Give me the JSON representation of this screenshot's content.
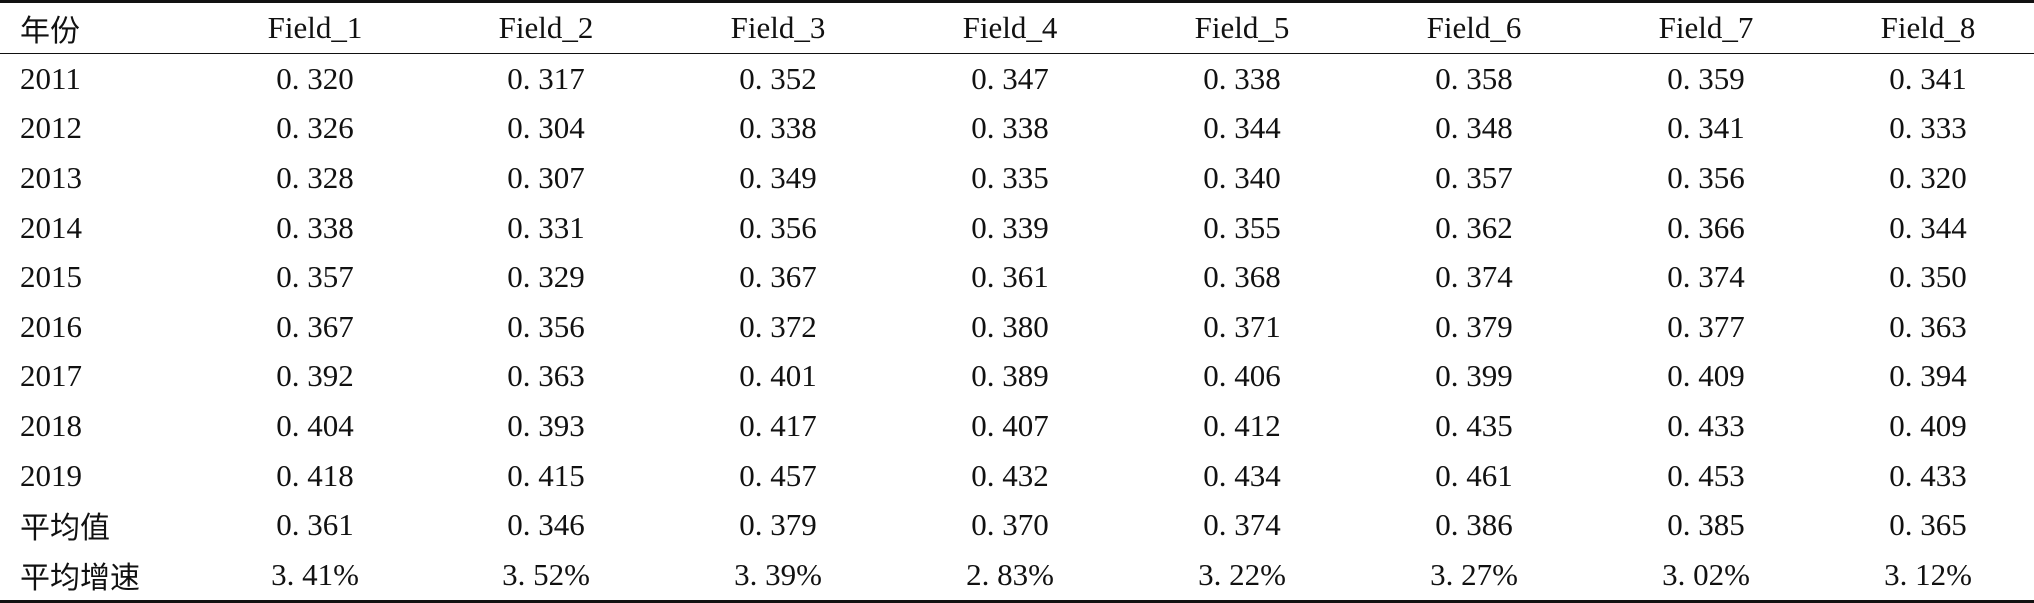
{
  "table": {
    "headers": [
      "年份",
      "Field_1",
      "Field_2",
      "Field_3",
      "Field_4",
      "Field_5",
      "Field_6",
      "Field_7",
      "Field_8"
    ],
    "rows": [
      [
        "2011",
        "0. 320",
        "0. 317",
        "0. 352",
        "0. 347",
        "0. 338",
        "0. 358",
        "0. 359",
        "0. 341"
      ],
      [
        "2012",
        "0. 326",
        "0. 304",
        "0. 338",
        "0. 338",
        "0. 344",
        "0. 348",
        "0. 341",
        "0. 333"
      ],
      [
        "2013",
        "0. 328",
        "0. 307",
        "0. 349",
        "0. 335",
        "0. 340",
        "0. 357",
        "0. 356",
        "0. 320"
      ],
      [
        "2014",
        "0. 338",
        "0. 331",
        "0. 356",
        "0. 339",
        "0. 355",
        "0. 362",
        "0. 366",
        "0. 344"
      ],
      [
        "2015",
        "0. 357",
        "0. 329",
        "0. 367",
        "0. 361",
        "0. 368",
        "0. 374",
        "0. 374",
        "0. 350"
      ],
      [
        "2016",
        "0. 367",
        "0. 356",
        "0. 372",
        "0. 380",
        "0. 371",
        "0. 379",
        "0. 377",
        "0. 363"
      ],
      [
        "2017",
        "0. 392",
        "0. 363",
        "0. 401",
        "0. 389",
        "0. 406",
        "0. 399",
        "0. 409",
        "0. 394"
      ],
      [
        "2018",
        "0. 404",
        "0. 393",
        "0. 417",
        "0. 407",
        "0. 412",
        "0. 435",
        "0. 433",
        "0. 409"
      ],
      [
        "2019",
        "0. 418",
        "0. 415",
        "0. 457",
        "0. 432",
        "0. 434",
        "0. 461",
        "0. 453",
        "0. 433"
      ],
      [
        "平均值",
        "0. 361",
        "0. 346",
        "0. 379",
        "0. 370",
        "0. 374",
        "0. 386",
        "0. 385",
        "0. 365"
      ],
      [
        "平均增速",
        "3. 41%",
        "3. 52%",
        "3. 39%",
        "2. 83%",
        "3. 22%",
        "3. 27%",
        "3. 02%",
        "3. 12%"
      ]
    ]
  }
}
